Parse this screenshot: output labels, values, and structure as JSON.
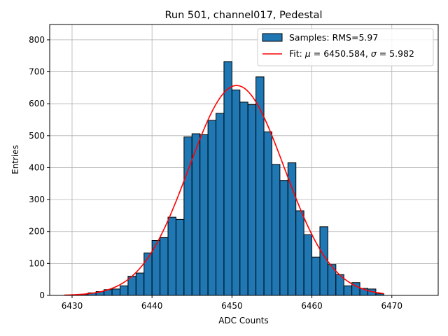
{
  "chart_data": {
    "type": "histogram",
    "title": "Run 501, channel017, Pedestal",
    "xlabel": "ADC Counts",
    "ylabel": "Entries",
    "xlim": [
      6427.2,
      6475.8
    ],
    "ylim": [
      0,
      848
    ],
    "xticks": [
      6430,
      6440,
      6450,
      6460,
      6470
    ],
    "yticks": [
      0,
      100,
      200,
      300,
      400,
      500,
      600,
      700,
      800
    ],
    "grid": true,
    "bar_color": "#1f77b4",
    "fit_color": "#ff0000",
    "bin_width": 1,
    "bin_start": 6431,
    "counts": [
      3,
      8,
      12,
      18,
      20,
      30,
      60,
      70,
      133,
      172,
      181,
      245,
      238,
      496,
      506,
      503,
      548,
      570,
      732,
      643,
      605,
      597,
      684,
      512,
      410,
      360,
      415,
      265,
      190,
      120,
      215,
      97,
      65,
      30,
      40,
      22,
      20,
      5
    ],
    "fit": {
      "mu": 6450.584,
      "sigma": 5.982,
      "amplitude": 657,
      "x_range": [
        6429,
        6469
      ]
    },
    "legend": {
      "position": "top-right",
      "entries": [
        {
          "label": "Samples: RMS=5.97",
          "kind": "patch"
        },
        {
          "label_prefix": "Fit: ",
          "mu_symbol": "μ",
          "mu_value": " = 6450.584, ",
          "sigma_symbol": "σ",
          "sigma_value": " = 5.982",
          "kind": "line"
        }
      ]
    }
  }
}
